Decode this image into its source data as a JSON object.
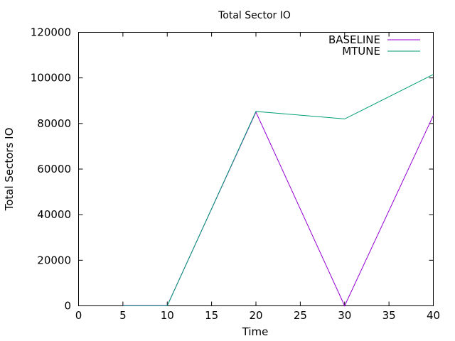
{
  "chart_data": {
    "type": "line",
    "title": "Total Sector IO",
    "xlabel": "Time",
    "ylabel": "Total Sectors IO",
    "xlim": [
      0,
      40
    ],
    "ylim": [
      0,
      120000
    ],
    "xticks": [
      0,
      5,
      10,
      15,
      20,
      25,
      30,
      35,
      40
    ],
    "yticks": [
      0,
      20000,
      40000,
      60000,
      80000,
      100000,
      120000
    ],
    "grid": false,
    "legend_position": "top-right",
    "series": [
      {
        "name": "BASELINE",
        "color": "#9400d3",
        "x": [
          5,
          10,
          20,
          30,
          40
        ],
        "y": [
          100,
          100,
          85000,
          0,
          83500
        ]
      },
      {
        "name": "MTUNE",
        "color": "#009e73",
        "x": [
          5,
          10,
          20,
          30,
          40
        ],
        "y": [
          0,
          0,
          85300,
          82000,
          101500
        ]
      }
    ]
  }
}
